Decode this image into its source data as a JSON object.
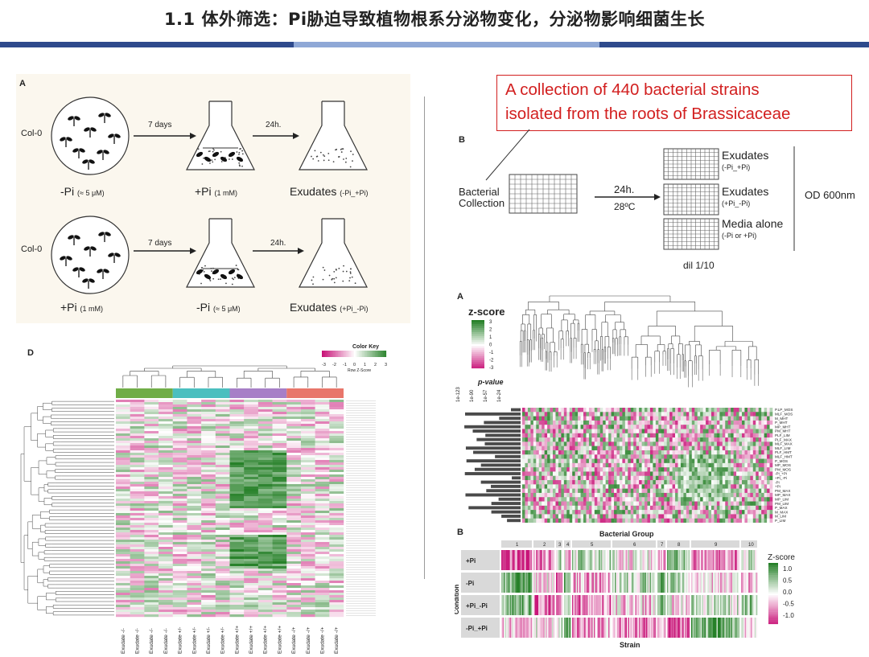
{
  "title": "1.1 体外筛选：Pi胁迫导致植物根系分泌物变化，分泌物影响细菌生长",
  "colors": {
    "bar_dark": "#2e4a8c",
    "bar_light": "#8fa8d6",
    "accent_red": "#d21f1f",
    "green": "#3c8c2c",
    "magenta": "#c2187a"
  },
  "panel_a_left": {
    "label": "A",
    "row1": {
      "plant": "Col-0",
      "arrow1": "7 days",
      "arrow2": "24h.",
      "cond1": "-Pi",
      "cond1_sub": "(≈ 5 μM)",
      "cond2": "+Pi",
      "cond2_sub": "(1 mM)",
      "cond3": "Exudates",
      "cond3_sub": "(-Pi_+Pi)"
    },
    "row2": {
      "plant": "Col-0",
      "arrow1": "7 days",
      "arrow2": "24h.",
      "cond1": "+Pi",
      "cond1_sub": "(1 mM)",
      "cond2": "-Pi",
      "cond2_sub": "(≈ 5 μM)",
      "cond3": "Exudates",
      "cond3_sub": "(+Pi_-Pi)"
    }
  },
  "callout": {
    "line1": "A collection of 440 bacterial strains",
    "line2": "isolated from the roots of Brassicaceae"
  },
  "panel_b_top": {
    "label": "B",
    "source": "Bacterial",
    "source2": "Collection",
    "arrow_top": "24h.",
    "arrow_bottom": "28ºC",
    "plates": [
      {
        "name": "Exudates",
        "sub": "(-Pi_+Pi)"
      },
      {
        "name": "Exudates",
        "sub": "(+Pi_-Pi)"
      },
      {
        "name": "Media alone",
        "sub": "(-Pi or +Pi)"
      }
    ],
    "dil": "dil 1/10",
    "od": "OD 600nm"
  },
  "panel_a_right": {
    "label": "A",
    "zscore": "z-score",
    "zticks": [
      "3",
      "2",
      "1",
      "0",
      "-1",
      "-2",
      "-3"
    ],
    "pvalue": "p-value",
    "pticks": [
      "1e-123",
      "1e-90",
      "1e-57",
      "1e-24"
    ],
    "rows": [
      "P.LP_MOS",
      "MLF_MOS",
      "M_MHT",
      "P_MHT",
      "MP_MHT",
      "PM_MHT",
      "PLF_LIM",
      "PLF_MAX",
      "MLF_MAX",
      "MLF_LIM",
      "PLF_HMT",
      "MLF_HMT",
      "P_MOS",
      "MP_MOS",
      "PM_MOS",
      "-Pi_+Pi",
      "+Pi_-Pi",
      "-Pi",
      "+Pi",
      "PM_MAX",
      "MP_MAX",
      "MP_LIM",
      "PM_LIM",
      "P_MAX",
      "M_MAX",
      "M_LIM",
      "P_LIM"
    ]
  },
  "panel_b_bottom": {
    "label": "B",
    "top_title": "Bacterial Group",
    "groups": [
      "1",
      "2",
      "3",
      "4",
      "5",
      "6",
      "7",
      "8",
      "9",
      "10"
    ],
    "conditions": [
      "+Pi",
      "-Pi",
      "+Pi_-Pi",
      "-Pi_+Pi"
    ],
    "ylabel": "Condition",
    "xlabel": "Strain",
    "legend_title": "Z-score",
    "legend_ticks": [
      "1.0",
      "0.5",
      "0.0",
      "-0.5",
      "-1.0"
    ]
  },
  "panel_d": {
    "label": "D",
    "color_key": "Color Key",
    "key_ticks": [
      "-3",
      "-2",
      "-1",
      "0",
      "1",
      "2",
      "3"
    ],
    "key_sub": "Row Z-Score",
    "col_labels": [
      "Exudate -/-",
      "Exudate -/-",
      "Exudate -/-",
      "Exudate -/-",
      "Exudate +/-",
      "Exudate +/-",
      "Exudate +/-",
      "Exudate +/-",
      "Exudate +/+",
      "Exudate +/+",
      "Exudate +/+",
      "Exudate +/+",
      "Exudate -/+",
      "Exudate -/+",
      "Exudate -/+",
      "Exudate -/+"
    ]
  }
}
